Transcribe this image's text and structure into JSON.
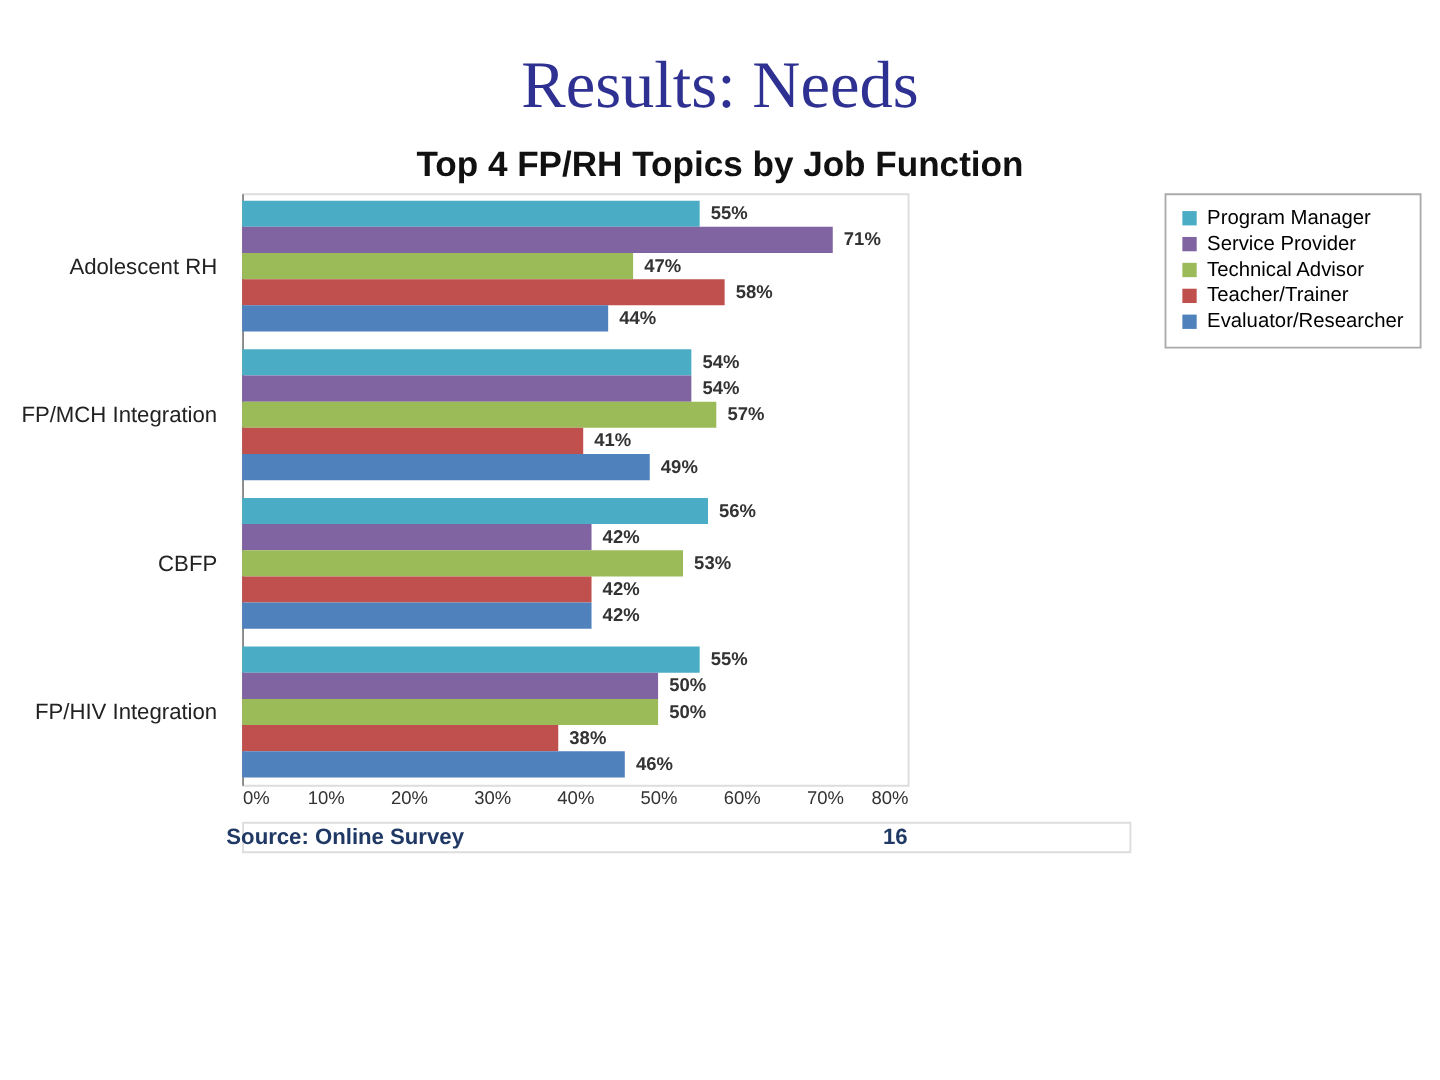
{
  "chart_data": {
    "type": "bar",
    "orientation": "horizontal",
    "title": "Results: Needs",
    "subtitle": "Top 4 FP/RH Topics by Job Function",
    "categories": [
      "Adolescent RH",
      "FP/MCH Integration",
      "CBFP",
      "FP/HIV Integration"
    ],
    "series": [
      {
        "name": "Program Manager",
        "color": "#4bacc6",
        "values": [
          55,
          54,
          56,
          55
        ],
        "value_labels": [
          "55%",
          "54%",
          "56%",
          "55%"
        ]
      },
      {
        "name": "Service Provider",
        "color": "#8064a2",
        "values": [
          71,
          54,
          42,
          50
        ],
        "value_labels": [
          "71%",
          "54%",
          "42%",
          "50%"
        ]
      },
      {
        "name": "Technical Advisor",
        "color": "#9bbb59",
        "values": [
          47,
          57,
          53,
          50
        ],
        "value_labels": [
          "47%",
          "57%",
          "53%",
          "50%"
        ]
      },
      {
        "name": "Teacher/Trainer",
        "color": "#c0504d",
        "values": [
          58,
          41,
          42,
          38
        ],
        "value_labels": [
          "58%",
          "41%",
          "42%",
          "38%"
        ]
      },
      {
        "name": "Evaluator/Researcher",
        "color": "#4f81bd",
        "values": [
          44,
          49,
          42,
          46
        ],
        "value_labels": [
          "44%",
          "49%",
          "42%",
          "46%"
        ]
      }
    ],
    "xlim": [
      0,
      80
    ],
    "xticks": [
      {
        "value": 0,
        "label": "0%"
      },
      {
        "value": 10,
        "label": "10%"
      },
      {
        "value": 20,
        "label": "20%"
      },
      {
        "value": 30,
        "label": "30%"
      },
      {
        "value": 40,
        "label": "40%"
      },
      {
        "value": 50,
        "label": "50%"
      },
      {
        "value": 60,
        "label": "60%"
      },
      {
        "value": 70,
        "label": "70%"
      },
      {
        "value": 80,
        "label": "80%"
      }
    ],
    "grid": false,
    "legend": "right",
    "annotations": [
      "Source: Online Survey",
      "16"
    ]
  }
}
